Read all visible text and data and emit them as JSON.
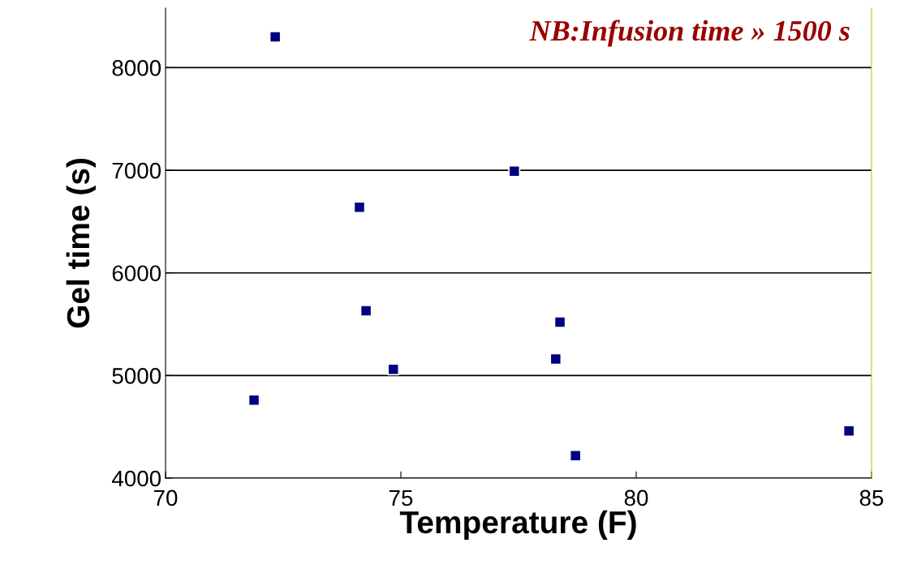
{
  "chart_data": {
    "type": "scatter",
    "xlabel": "Temperature (F)",
    "ylabel": "Gel time (s)",
    "annotations": [
      "NB:Infusion time » 1500 s"
    ],
    "x": [
      72.33,
      77.41,
      74.12,
      74.26,
      78.38,
      78.29,
      74.84,
      71.88,
      78.71,
      84.52
    ],
    "series": [
      {
        "color": "#000080",
        "values": [
          8300,
          6990,
          6640,
          5630,
          5520,
          5160,
          5060,
          4760,
          4220,
          4460
        ]
      }
    ],
    "xlim": [
      70,
      85
    ],
    "xticks": [
      70,
      75,
      80,
      85
    ],
    "ylim": [
      4000,
      8580
    ],
    "yticks": [
      4000,
      5000,
      6000,
      7000,
      8000
    ],
    "grid": "y",
    "marker": "square",
    "legend": false
  }
}
